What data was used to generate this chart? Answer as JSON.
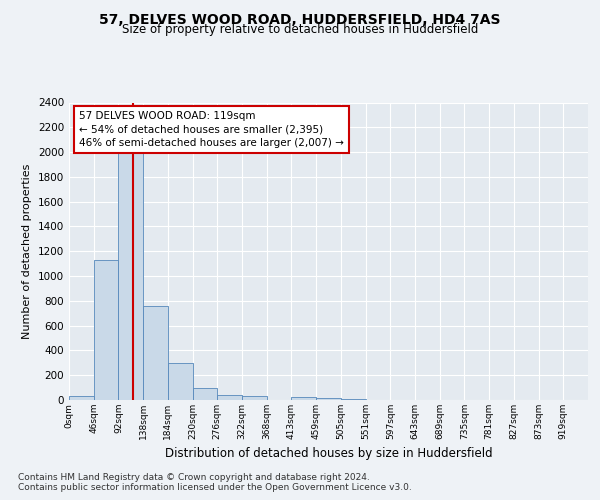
{
  "title": "57, DELVES WOOD ROAD, HUDDERSFIELD, HD4 7AS",
  "subtitle": "Size of property relative to detached houses in Huddersfield",
  "xlabel": "Distribution of detached houses by size in Huddersfield",
  "ylabel": "Number of detached properties",
  "bin_labels": [
    "0sqm",
    "46sqm",
    "92sqm",
    "138sqm",
    "184sqm",
    "230sqm",
    "276sqm",
    "322sqm",
    "368sqm",
    "413sqm",
    "459sqm",
    "505sqm",
    "551sqm",
    "597sqm",
    "643sqm",
    "689sqm",
    "735sqm",
    "781sqm",
    "827sqm",
    "873sqm",
    "919sqm"
  ],
  "bar_heights": [
    30,
    1130,
    2000,
    760,
    295,
    100,
    40,
    30,
    0,
    25,
    20,
    5,
    0,
    0,
    0,
    0,
    0,
    3,
    0,
    3,
    3
  ],
  "bar_color": "#c9d9e8",
  "bar_edge_color": "#5588bb",
  "annotation_text": "57 DELVES WOOD ROAD: 119sqm\n← 54% of detached houses are smaller (2,395)\n46% of semi-detached houses are larger (2,007) →",
  "annotation_box_color": "#ffffff",
  "annotation_box_edge_color": "#cc0000",
  "ylim": [
    0,
    2400
  ],
  "yticks": [
    0,
    200,
    400,
    600,
    800,
    1000,
    1200,
    1400,
    1600,
    1800,
    2000,
    2200,
    2400
  ],
  "footer_line1": "Contains HM Land Registry data © Crown copyright and database right 2024.",
  "footer_line2": "Contains public sector information licensed under the Open Government Licence v3.0.",
  "background_color": "#eef2f6",
  "plot_background_color": "#e4eaf0",
  "grid_color": "#ffffff",
  "red_line_color": "#cc0000"
}
